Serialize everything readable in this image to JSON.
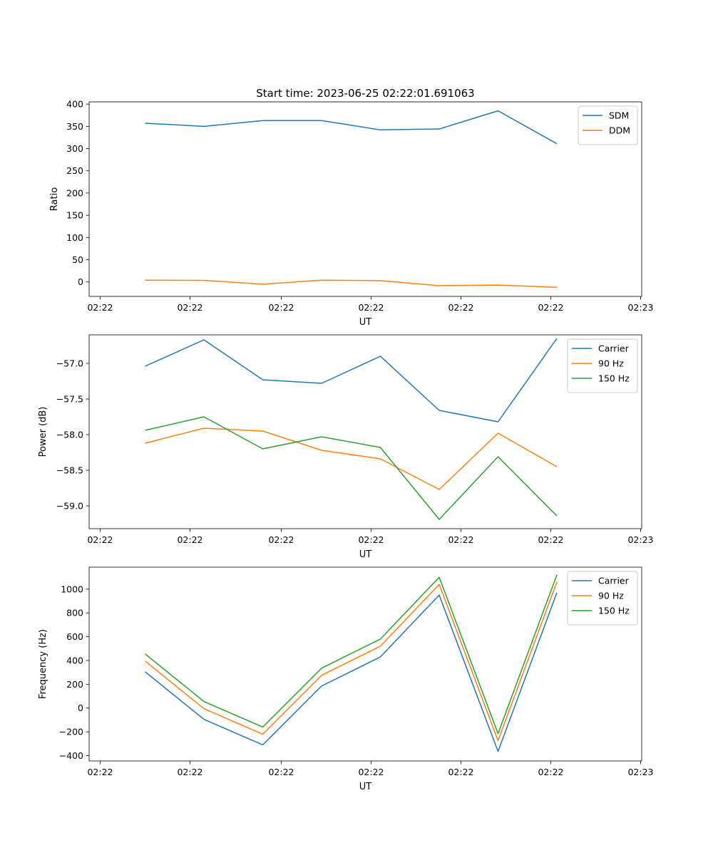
{
  "title": "Start time: 2023-06-25 02:22:01.691063",
  "chart_data": [
    {
      "type": "line",
      "ylabel": "Ratio",
      "xlabel": "UT",
      "x_tick_labels": [
        "02:22",
        "02:22",
        "02:22",
        "02:22",
        "02:22",
        "02:22",
        "02:23"
      ],
      "y_ticks": [
        0,
        50,
        100,
        150,
        200,
        250,
        300,
        350,
        400
      ],
      "ylim": [
        -32.5,
        405
      ],
      "legend_position": "top-right",
      "grid": false,
      "series": [
        {
          "name": "SDM",
          "color": "#1f77b4",
          "values": [
            357,
            350,
            363,
            363,
            342,
            344,
            385,
            311
          ]
        },
        {
          "name": "DDM",
          "color": "#ff7f0e",
          "values": [
            4,
            3.5,
            -5,
            4,
            3,
            -8.5,
            -7,
            -12
          ]
        }
      ]
    },
    {
      "type": "line",
      "ylabel": "Power (dB)",
      "xlabel": "UT",
      "x_tick_labels": [
        "02:22",
        "02:22",
        "02:22",
        "02:22",
        "02:22",
        "02:22",
        "02:23"
      ],
      "y_ticks": [
        -57.0,
        -57.5,
        -58.0,
        -58.5,
        -59.0
      ],
      "y_tick_labels": [
        "−57.0",
        "−57.5",
        "−58.0",
        "−58.5",
        "−59.0"
      ],
      "ylim": [
        -59.32,
        -56.6
      ],
      "legend_position": "top-right",
      "grid": false,
      "series": [
        {
          "name": "Carrier",
          "color": "#1f77b4",
          "values": [
            -57.04,
            -56.67,
            -57.23,
            -57.28,
            -56.9,
            -57.66,
            -57.82,
            -56.65
          ]
        },
        {
          "name": "90 Hz",
          "color": "#ff7f0e",
          "values": [
            -58.12,
            -57.91,
            -57.95,
            -58.22,
            -58.34,
            -58.77,
            -57.98,
            -58.45
          ]
        },
        {
          "name": "150 Hz",
          "color": "#2ca02c",
          "values": [
            -57.94,
            -57.75,
            -58.2,
            -58.03,
            -58.18,
            -59.19,
            -58.31,
            -59.14
          ]
        }
      ]
    },
    {
      "type": "line",
      "ylabel": "Frequency (Hz)",
      "xlabel": "UT",
      "x_tick_labels": [
        "02:22",
        "02:22",
        "02:22",
        "02:22",
        "02:22",
        "02:22",
        "02:23"
      ],
      "y_ticks": [
        -400,
        -200,
        0,
        200,
        400,
        600,
        800,
        1000
      ],
      "y_tick_labels": [
        "−400",
        "−200",
        "0",
        "200",
        "400",
        "600",
        "800",
        "1000"
      ],
      "ylim": [
        -445,
        1185
      ],
      "legend_position": "top-right",
      "grid": false,
      "series": [
        {
          "name": "Carrier",
          "color": "#1f77b4",
          "values": [
            305,
            -95,
            -310,
            185,
            430,
            950,
            -365,
            970
          ]
        },
        {
          "name": "90 Hz",
          "color": "#ff7f0e",
          "values": [
            395,
            -5,
            -220,
            275,
            520,
            1040,
            -275,
            1060
          ]
        },
        {
          "name": "150 Hz",
          "color": "#2ca02c",
          "values": [
            455,
            55,
            -160,
            335,
            580,
            1100,
            -215,
            1120
          ]
        }
      ]
    }
  ]
}
